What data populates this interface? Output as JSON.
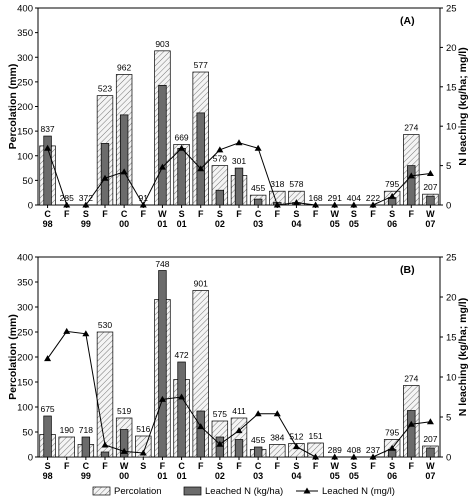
{
  "chart_data": [
    {
      "type": "bar",
      "panel_label": "(A)",
      "ylabel_left": "Percolation (mm)",
      "ylabel_right": "N leaching (kg/ha; mg/l)",
      "ylim_left": [
        0,
        400
      ],
      "ylim_right": [
        0,
        25
      ],
      "yticks_left": [
        "0",
        "50",
        "100",
        "150",
        "200",
        "250",
        "300",
        "350",
        "400"
      ],
      "yticks_right": [
        "0",
        "5",
        "10",
        "15",
        "20",
        "25"
      ],
      "categories": [
        {
          "season": "C",
          "year": "98"
        },
        {
          "season": "F",
          "year": ""
        },
        {
          "season": "S",
          "year": "99"
        },
        {
          "season": "F",
          "year": ""
        },
        {
          "season": "C",
          "year": "00"
        },
        {
          "season": "F",
          "year": ""
        },
        {
          "season": "W",
          "year": "01"
        },
        {
          "season": "S",
          "year": "01"
        },
        {
          "season": "F",
          "year": ""
        },
        {
          "season": "S",
          "year": "02"
        },
        {
          "season": "F",
          "year": ""
        },
        {
          "season": "C",
          "year": "03"
        },
        {
          "season": "F",
          "year": ""
        },
        {
          "season": "S",
          "year": "04"
        },
        {
          "season": "F",
          "year": ""
        },
        {
          "season": "W",
          "year": "05"
        },
        {
          "season": "S",
          "year": "05"
        },
        {
          "season": "F",
          "year": ""
        },
        {
          "season": "S",
          "year": "06"
        },
        {
          "season": "F",
          "year": ""
        },
        {
          "season": "W",
          "year": "07"
        }
      ],
      "series": [
        {
          "name": "Percolation",
          "axis": "left",
          "values": [
            120,
            0,
            0,
            222,
            265,
            0,
            313,
            123,
            270,
            80,
            60,
            20,
            28,
            28,
            0,
            0,
            0,
            0,
            28,
            143,
            22
          ]
        },
        {
          "name": "Leached N (kg/ha)",
          "axis": "left",
          "values": [
            140,
            0,
            0,
            125,
            183,
            0,
            243,
            115,
            187,
            30,
            75,
            12,
            5,
            5,
            0,
            0,
            0,
            0,
            15,
            80,
            18
          ]
        },
        {
          "name": "Leached N (mg/l)",
          "axis": "right",
          "values": [
            7.2,
            0,
            0,
            3.4,
            4.2,
            0,
            4.8,
            7.2,
            4.6,
            7.0,
            7.9,
            7.2,
            0,
            0.3,
            0,
            0,
            0,
            0,
            1.1,
            3.7,
            4.0
          ]
        }
      ],
      "annotations": [
        "837",
        "285",
        "372",
        "523",
        "962",
        "91",
        "903",
        "669",
        "577",
        "579",
        "301",
        "455",
        "318",
        "578",
        "168",
        "291",
        "404",
        "222",
        "795",
        "274",
        "207"
      ]
    },
    {
      "type": "bar",
      "panel_label": "(B)",
      "ylabel_left": "Percolation (mm)",
      "ylabel_right": "N leaching (kg/ha; mg/l)",
      "ylim_left": [
        0,
        400
      ],
      "ylim_right": [
        0,
        25
      ],
      "yticks_left": [
        "0",
        "50",
        "100",
        "150",
        "200",
        "250",
        "300",
        "350",
        "400"
      ],
      "yticks_right": [
        "0",
        "5",
        "10",
        "15",
        "20",
        "25"
      ],
      "categories": [
        {
          "season": "S",
          "year": "98"
        },
        {
          "season": "F",
          "year": ""
        },
        {
          "season": "C",
          "year": "99"
        },
        {
          "season": "F",
          "year": ""
        },
        {
          "season": "W",
          "year": "00"
        },
        {
          "season": "S",
          "year": ""
        },
        {
          "season": "F",
          "year": "01"
        },
        {
          "season": "C",
          "year": "01"
        },
        {
          "season": "F",
          "year": ""
        },
        {
          "season": "S",
          "year": "02"
        },
        {
          "season": "F",
          "year": ""
        },
        {
          "season": "C",
          "year": "03"
        },
        {
          "season": "F",
          "year": ""
        },
        {
          "season": "S",
          "year": "04"
        },
        {
          "season": "F",
          "year": ""
        },
        {
          "season": "W",
          "year": "05"
        },
        {
          "season": "S",
          "year": "05"
        },
        {
          "season": "F",
          "year": ""
        },
        {
          "season": "S",
          "year": "06"
        },
        {
          "season": "F",
          "year": ""
        },
        {
          "season": "W",
          "year": "07"
        }
      ],
      "series": [
        {
          "name": "Percolation",
          "axis": "left",
          "values": [
            45,
            40,
            25,
            250,
            78,
            42,
            315,
            155,
            333,
            72,
            78,
            15,
            25,
            27,
            28,
            0,
            0,
            0,
            35,
            143,
            22
          ]
        },
        {
          "name": "Leached N (kg/ha)",
          "axis": "left",
          "values": [
            82,
            0,
            40,
            10,
            55,
            0,
            373,
            190,
            92,
            40,
            35,
            20,
            0,
            0,
            0,
            0,
            0,
            0,
            15,
            93,
            18
          ]
        },
        {
          "name": "Leached N (mg/l)",
          "axis": "right",
          "values": [
            12.3,
            15.7,
            15.4,
            1.5,
            0.7,
            0.5,
            7.2,
            7.5,
            3.8,
            1.6,
            3.3,
            5.4,
            5.4,
            1.3,
            0,
            0,
            0,
            0,
            1.1,
            4.1,
            4.4
          ]
        }
      ],
      "annotations": [
        "675",
        "190",
        "718",
        "530",
        "519",
        "516",
        "748",
        "472",
        "901",
        "575",
        "411",
        "455",
        "384",
        "512",
        "151",
        "289",
        "408",
        "237",
        "795",
        "274",
        "207"
      ]
    }
  ],
  "legend": {
    "percolation": "Percolation",
    "leached_kg": "Leached N (kg/ha)",
    "leached_mg": "Leached N (mg/l)"
  }
}
